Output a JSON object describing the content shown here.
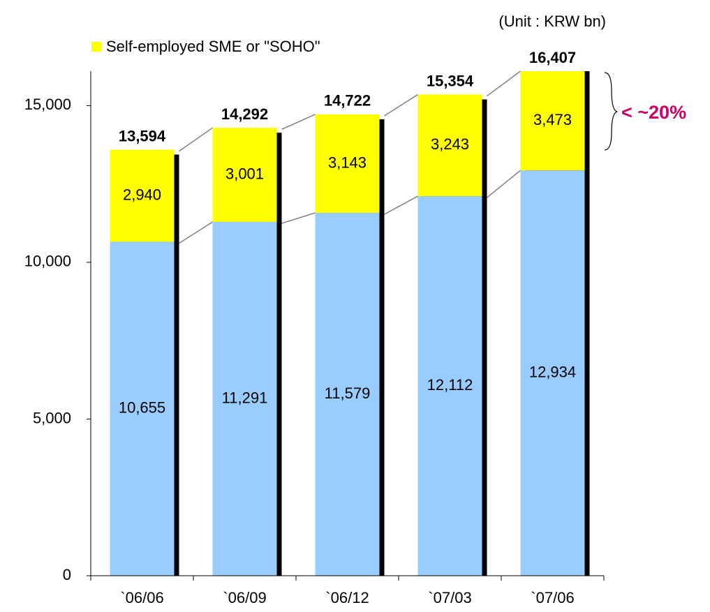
{
  "chart_data": {
    "type": "stacked_bar",
    "unit_note": "(Unit : KRW bn)",
    "annotation": "< ~20%",
    "categories": [
      "`06/06",
      "`06/09",
      "`06/12",
      "`07/03",
      "`07/06"
    ],
    "series": [
      {
        "color": "#99ccff",
        "values": [
          10655,
          11291,
          11579,
          12112,
          12934
        ],
        "value_labels": [
          "10,655",
          "11,291",
          "11,579",
          "12,112",
          "12,934"
        ]
      },
      {
        "name": "Self-employed SME or \"SOHO\"",
        "color": "#ffff00",
        "values": [
          2940,
          3001,
          3143,
          3243,
          3473
        ],
        "value_labels": [
          "2,940",
          "3,001",
          "3,143",
          "3,243",
          "3,473"
        ]
      }
    ],
    "totals": {
      "values": [
        13594,
        14292,
        14722,
        15354,
        16407
      ],
      "value_labels": [
        "13,594",
        "14,292",
        "14,722",
        "15,354",
        "16,407"
      ]
    },
    "ylim": [
      0,
      16100
    ],
    "yticks": [
      0,
      {
        "value": 5000,
        "label": "5,000"
      },
      {
        "value": 10000,
        "label": "10,000"
      },
      {
        "value": 15000,
        "label": "15,000"
      }
    ]
  }
}
